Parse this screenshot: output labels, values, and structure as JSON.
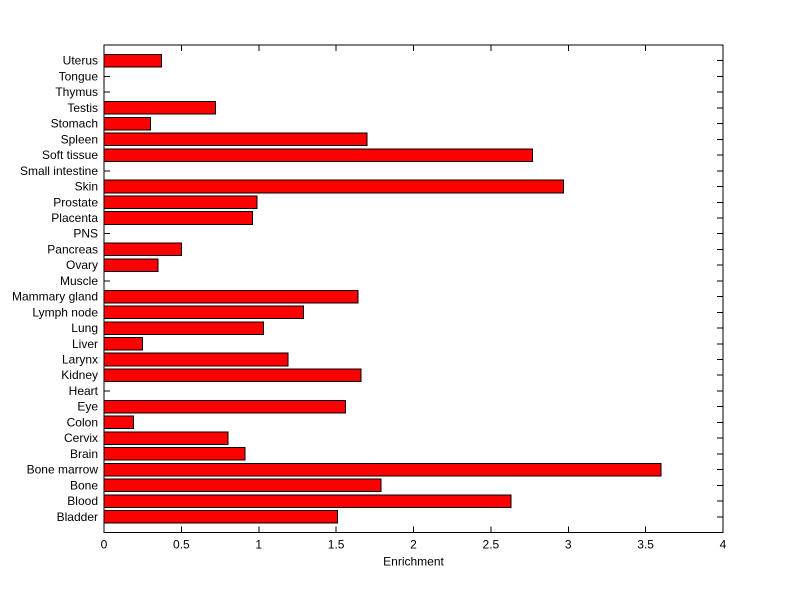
{
  "chart_data": {
    "type": "bar",
    "orientation": "horizontal",
    "title": "",
    "xlabel": "Enrichment",
    "ylabel": "",
    "xlim": [
      0,
      4
    ],
    "xticks": [
      0,
      0.5,
      1,
      1.5,
      2,
      2.5,
      3,
      3.5,
      4
    ],
    "xtick_labels": [
      "0",
      "0.5",
      "1",
      "1.5",
      "2",
      "2.5",
      "3",
      "3.5",
      "4"
    ],
    "grid": false,
    "legend": null,
    "bar_color": "#ff0000",
    "bar_edge_color": "#000000",
    "axis_color": "#000000",
    "background_color": "#ffffff",
    "categories_order": "top-to-bottom",
    "categories": [
      "Uterus",
      "Tongue",
      "Thymus",
      "Testis",
      "Stomach",
      "Spleen",
      "Soft tissue",
      "Small intestine",
      "Skin",
      "Prostate",
      "Placenta",
      "PNS",
      "Pancreas",
      "Ovary",
      "Muscle",
      "Mammary gland",
      "Lymph node",
      "Lung",
      "Liver",
      "Larynx",
      "Kidney",
      "Heart",
      "Eye",
      "Colon",
      "Cervix",
      "Brain",
      "Bone marrow",
      "Bone",
      "Blood",
      "Bladder"
    ],
    "values": [
      0.37,
      0,
      0,
      0.72,
      0.3,
      1.7,
      2.77,
      0,
      2.97,
      0.99,
      0.96,
      0,
      0.5,
      0.35,
      0,
      1.64,
      1.29,
      1.03,
      0.25,
      1.19,
      1.66,
      0,
      1.56,
      0.19,
      0.8,
      0.91,
      3.6,
      1.79,
      2.63,
      1.51
    ]
  }
}
